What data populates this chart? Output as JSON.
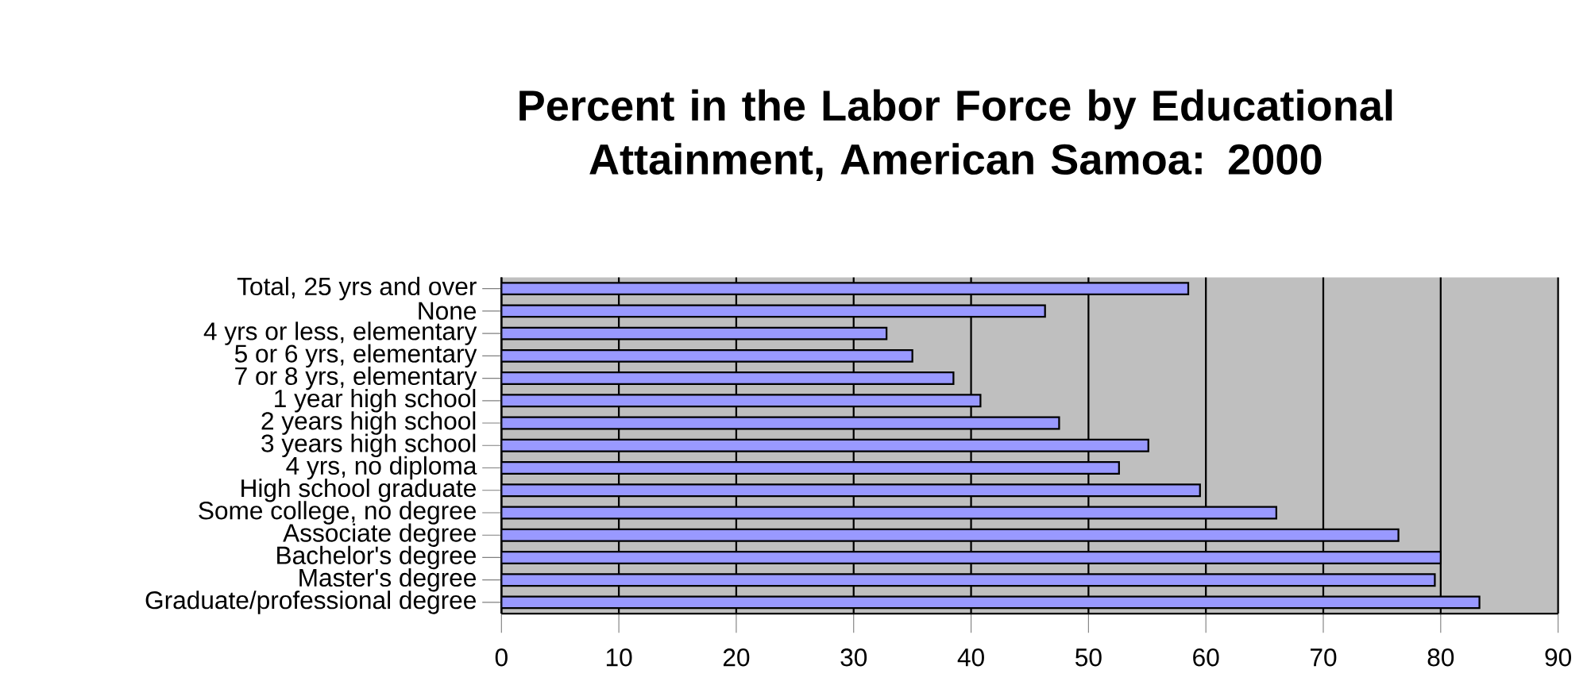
{
  "chart_data": {
    "type": "bar",
    "orientation": "horizontal",
    "title": "Percent in the Labor Force by Educational Attainment, American Samoa: 2000",
    "categories": [
      "Total, 25 yrs and over",
      "None",
      "4 yrs or less, elementary",
      "5 or 6 yrs, elementary",
      "7 or 8 yrs, elementary",
      "1 year high school",
      "2 years high school",
      "3 years high school",
      "4 yrs, no diploma",
      "High school graduate",
      "Some college, no degree",
      "Associate degree",
      "Bachelor's degree",
      "Master's degree",
      "Graduate/professional degree"
    ],
    "values": [
      58.5,
      46.3,
      32.8,
      35.0,
      38.5,
      40.8,
      47.5,
      55.1,
      52.6,
      59.5,
      66.0,
      76.4,
      80.0,
      79.5,
      83.3
    ],
    "color": "#9999ff",
    "xlim": [
      0,
      90
    ],
    "xticks": [
      0,
      10,
      20,
      30,
      40,
      50,
      60,
      70,
      80,
      90
    ],
    "grid": "x"
  }
}
